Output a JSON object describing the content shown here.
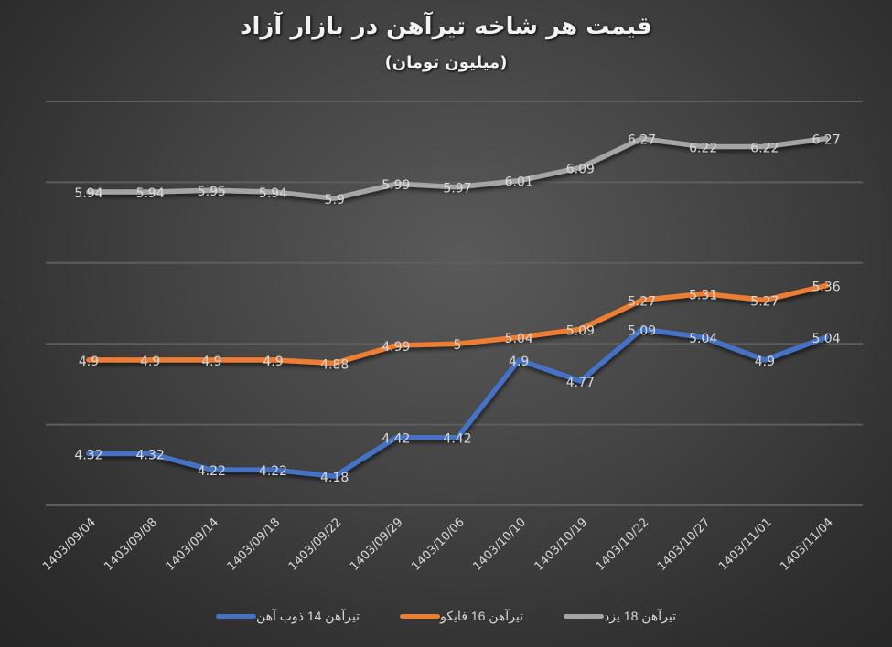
{
  "chart_data": {
    "type": "line",
    "title": "قیمت هر شاخه تیرآهن در بازار آزاد",
    "subtitle": "(میلیون تومان)",
    "xlabel": "",
    "ylabel": "",
    "ylim": [
      4.0,
      6.5
    ],
    "grid": true,
    "y_axis_labels_visible": false,
    "legend_position": "bottom",
    "categories": [
      "1403/09/04",
      "1403/09/08",
      "1403/09/14",
      "1403/09/18",
      "1403/09/22",
      "1403/09/29",
      "1403/10/06",
      "1403/10/10",
      "1403/10/19",
      "1403/10/22",
      "1403/10/27",
      "1403/11/01",
      "1403/11/04"
    ],
    "series": [
      {
        "name": "تیرآهن 14 ذوب آهن",
        "color": "#4472c4",
        "values": [
          4.32,
          4.32,
          4.22,
          4.22,
          4.18,
          4.42,
          4.42,
          4.9,
          4.77,
          5.09,
          5.04,
          4.9,
          5.04
        ]
      },
      {
        "name": "تیرآهن 16 فایکو",
        "color": "#ed7d31",
        "values": [
          4.9,
          4.9,
          4.9,
          4.9,
          4.88,
          4.99,
          5,
          5.04,
          5.09,
          5.27,
          5.31,
          5.27,
          5.36
        ]
      },
      {
        "name": "تیرآهن 18 یزد",
        "color": "#a5a5a5",
        "values": [
          5.94,
          5.94,
          5.95,
          5.94,
          5.9,
          5.99,
          5.97,
          6.01,
          6.09,
          6.27,
          6.22,
          6.22,
          6.27
        ]
      }
    ],
    "gridlines": [
      4.0,
      4.5,
      5.0,
      5.5,
      6.0,
      6.5
    ]
  },
  "legend": {
    "items": [
      {
        "label": "تیرآهن 14 ذوب آهن",
        "color": "#4472c4"
      },
      {
        "label": "تیرآهن 16 فایکو",
        "color": "#ed7d31"
      },
      {
        "label": "تیرآهن 18 یزد",
        "color": "#a5a5a5"
      }
    ]
  }
}
